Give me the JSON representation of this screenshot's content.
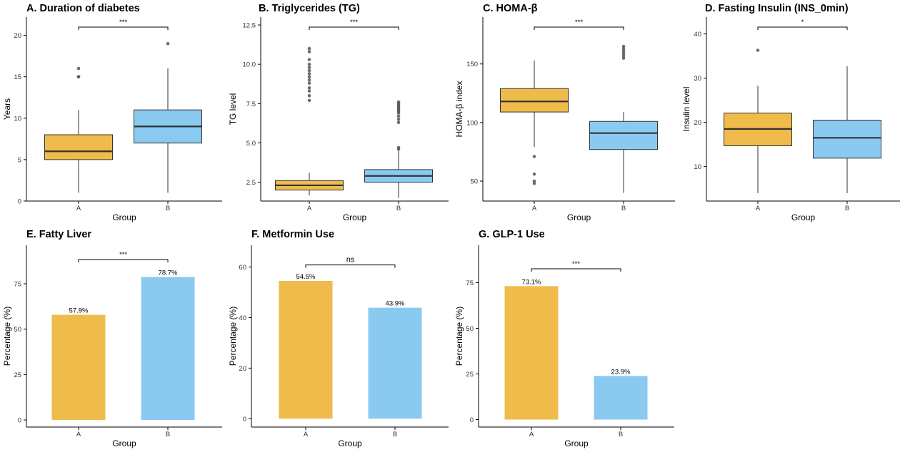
{
  "colors": {
    "A": "#EFBB4B",
    "B": "#8ACAF1",
    "median": "#333333",
    "outlier": "#555555",
    "axis": "#000000"
  },
  "chart_data": [
    {
      "id": "panelA",
      "type": "box",
      "title": "A. Duration of diabetes",
      "xlabel": "Group",
      "ylabel": "Years",
      "categories": [
        "A",
        "B"
      ],
      "ylim": [
        0,
        22.2
      ],
      "yticks": [
        0,
        5,
        10,
        15,
        20
      ],
      "boxes": [
        {
          "group": "A",
          "min": 1,
          "q1": 5,
          "median": 6,
          "q3": 8,
          "max": 11,
          "outliers": [
            15,
            15,
            16
          ]
        },
        {
          "group": "B",
          "min": 1,
          "q1": 7,
          "median": 9,
          "q3": 11,
          "max": 16,
          "outliers": [
            19
          ]
        }
      ],
      "significance": "***"
    },
    {
      "id": "panelB",
      "type": "box",
      "title": "B. Triglycerides (TG)",
      "xlabel": "Group",
      "ylabel": "TG level",
      "categories": [
        "A",
        "B"
      ],
      "ylim": [
        1.3,
        13.0
      ],
      "yticks": [
        2.5,
        5.0,
        7.5,
        10.0,
        12.5
      ],
      "ytick_labels": [
        "2.5",
        "5.0",
        "7.5",
        "10.0",
        "12.5"
      ],
      "boxes": [
        {
          "group": "A",
          "min": 1.65,
          "q1": 2.0,
          "median": 2.3,
          "q3": 2.6,
          "max": 3.1,
          "outliers": [
            7.7,
            8.0,
            8.3,
            8.5,
            8.8,
            9.0,
            9.2,
            9.4,
            9.6,
            9.8,
            10.0,
            10.3,
            10.8,
            11.0
          ]
        },
        {
          "group": "B",
          "min": 1.5,
          "q1": 2.5,
          "median": 2.9,
          "q3": 3.3,
          "max": 4.5,
          "outliers": [
            4.6,
            4.7,
            6.3,
            6.5,
            6.7,
            6.9,
            7.0,
            7.1,
            7.2,
            7.3,
            7.4,
            7.5,
            7.6
          ]
        }
      ],
      "significance": "***"
    },
    {
      "id": "panelC",
      "type": "box",
      "title": "C. HOMA-β",
      "xlabel": "Group",
      "ylabel": "HOMA-β index",
      "categories": [
        "A",
        "B"
      ],
      "ylim": [
        33,
        190
      ],
      "yticks": [
        50,
        100,
        150
      ],
      "boxes": [
        {
          "group": "A",
          "min": 79,
          "q1": 109,
          "median": 118,
          "q3": 129,
          "max": 153,
          "outliers": [
            48,
            50,
            56,
            71
          ]
        },
        {
          "group": "B",
          "min": 40,
          "q1": 77,
          "median": 91,
          "q3": 101,
          "max": 109,
          "outliers": [
            155,
            157,
            159,
            161,
            163,
            165
          ]
        }
      ],
      "significance": "***"
    },
    {
      "id": "panelD",
      "type": "box",
      "title": "D. Fasting Insulin (INS_0min)",
      "xlabel": "Group",
      "ylabel": "Insulin level",
      "categories": [
        "A",
        "B"
      ],
      "ylim": [
        2.2,
        43.8
      ],
      "yticks": [
        10,
        20,
        30,
        40
      ],
      "boxes": [
        {
          "group": "A",
          "min": 4,
          "q1": 14.7,
          "median": 18.5,
          "q3": 22.1,
          "max": 28.3,
          "outliers": [
            36.3
          ]
        },
        {
          "group": "B",
          "min": 4,
          "q1": 11.9,
          "median": 16.5,
          "q3": 20.5,
          "max": 32.7,
          "outliers": []
        }
      ],
      "significance": "*"
    },
    {
      "id": "panelE",
      "type": "bar",
      "title": "E. Fatty Liver",
      "xlabel": "Group",
      "ylabel": "Percentage (%)",
      "categories": [
        "A",
        "B"
      ],
      "values": [
        57.9,
        78.7
      ],
      "value_labels": [
        "57.9%",
        "78.7%"
      ],
      "ylim": [
        -3.9,
        96.2
      ],
      "yticks": [
        0,
        25,
        50,
        75
      ],
      "significance": "***",
      "bracket_y": 88.3
    },
    {
      "id": "panelF",
      "type": "bar",
      "title": "F. Metformin Use",
      "xlabel": "Group",
      "ylabel": "Percentage (%)",
      "categories": [
        "A",
        "B"
      ],
      "values": [
        54.5,
        43.9
      ],
      "value_labels": [
        "54.5%",
        "43.9%"
      ],
      "ylim": [
        -3.3,
        68.6
      ],
      "yticks": [
        0,
        20,
        40,
        60
      ],
      "significance": "ns",
      "bracket_y": 60.8
    },
    {
      "id": "panelG",
      "type": "bar",
      "title": "G. GLP-1 Use",
      "xlabel": "Group",
      "ylabel": "Percentage (%)",
      "categories": [
        "A",
        "B"
      ],
      "values": [
        73.1,
        23.9
      ],
      "value_labels": [
        "73.1%",
        "23.9%"
      ],
      "ylim": [
        -4.1,
        95.5
      ],
      "yticks": [
        0,
        25,
        50,
        75
      ],
      "significance": "***",
      "bracket_y": 82.6
    }
  ]
}
